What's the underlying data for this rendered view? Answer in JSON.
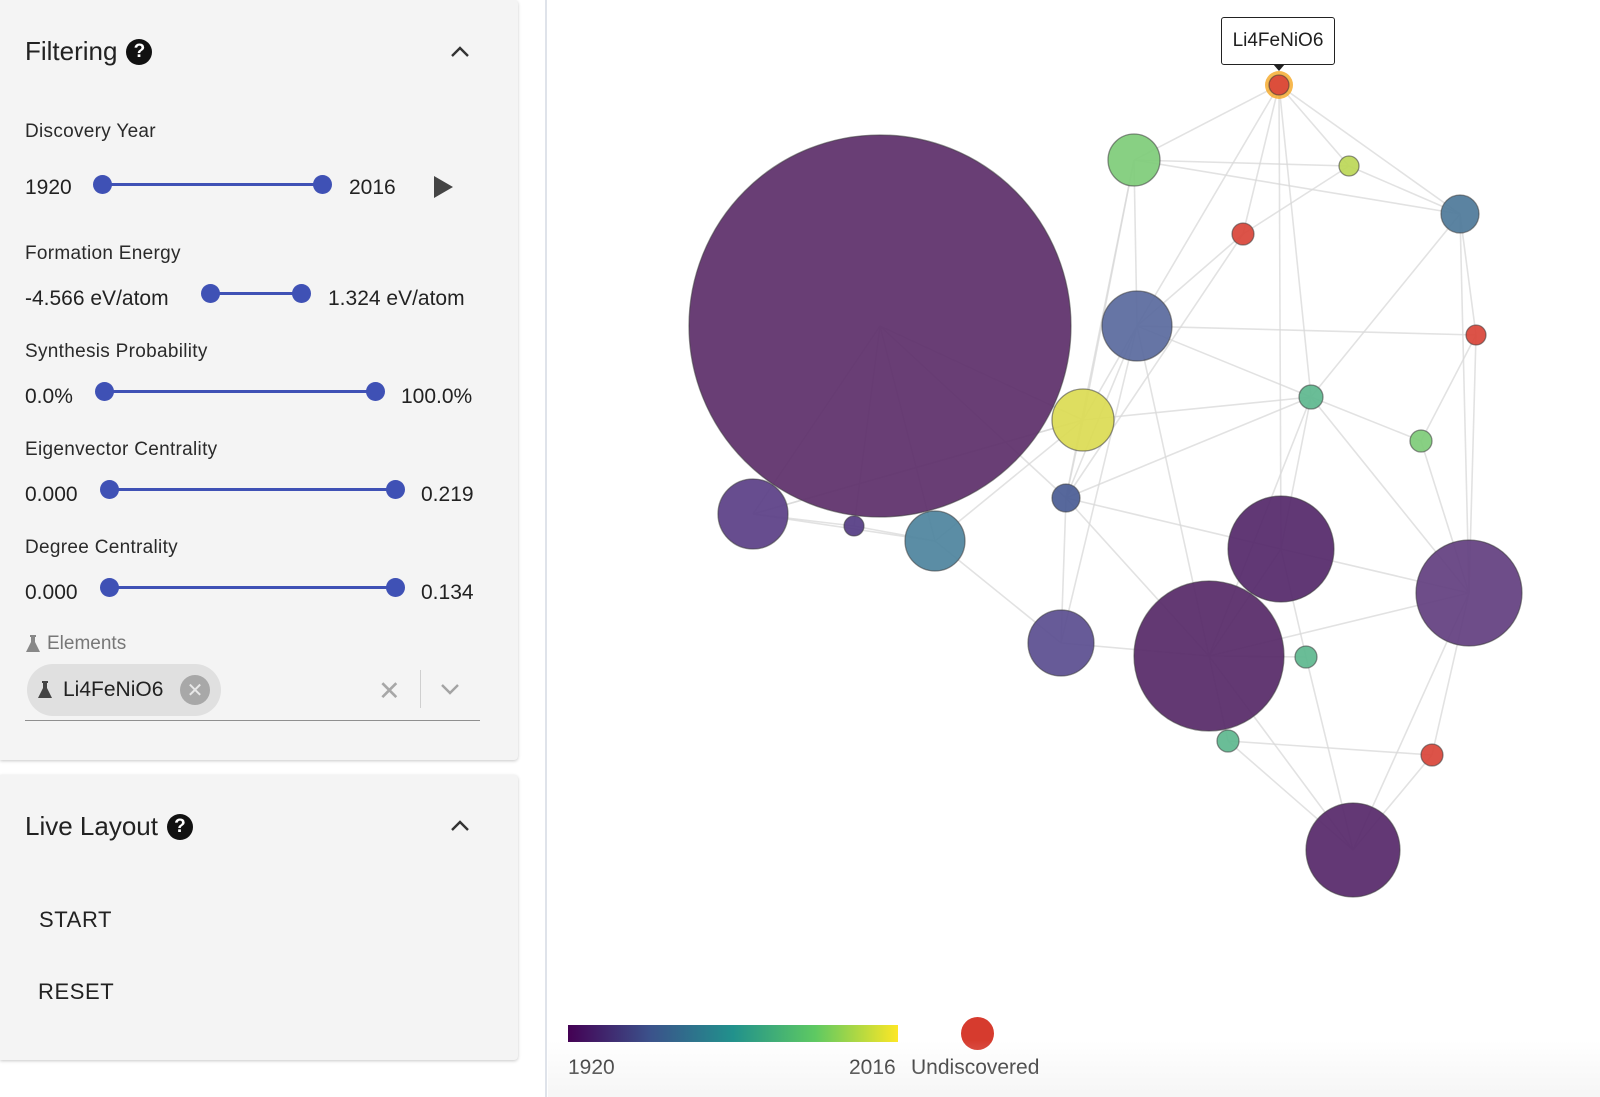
{
  "filtering": {
    "title": "Filtering",
    "discovery_year": {
      "label": "Discovery Year",
      "min": "1920",
      "max": "2016"
    },
    "formation_energy": {
      "label": "Formation Energy",
      "min": "-4.566 eV/atom",
      "max": "1.324 eV/atom"
    },
    "synthesis_probability": {
      "label": "Synthesis Probability",
      "min": "0.0%",
      "max": "100.0%"
    },
    "eigenvector_centrality": {
      "label": "Eigenvector Centrality",
      "min": "0.000",
      "max": "0.219"
    },
    "degree_centrality": {
      "label": "Degree Centrality",
      "min": "0.000",
      "max": "0.134"
    },
    "elements": {
      "label": "Elements",
      "chip": "Li4FeNiO6"
    }
  },
  "live_layout": {
    "title": "Live Layout",
    "start": "START",
    "reset": "RESET"
  },
  "graph": {
    "tooltip": "Li4FeNiO6",
    "legend": {
      "min": "1920",
      "max": "2016",
      "undiscovered": "Undiscovered"
    },
    "colors": {
      "undiscovered": "#d63b2e",
      "highlight_ring": "#f5a623",
      "edge": "#d9d9d9"
    }
  }
}
